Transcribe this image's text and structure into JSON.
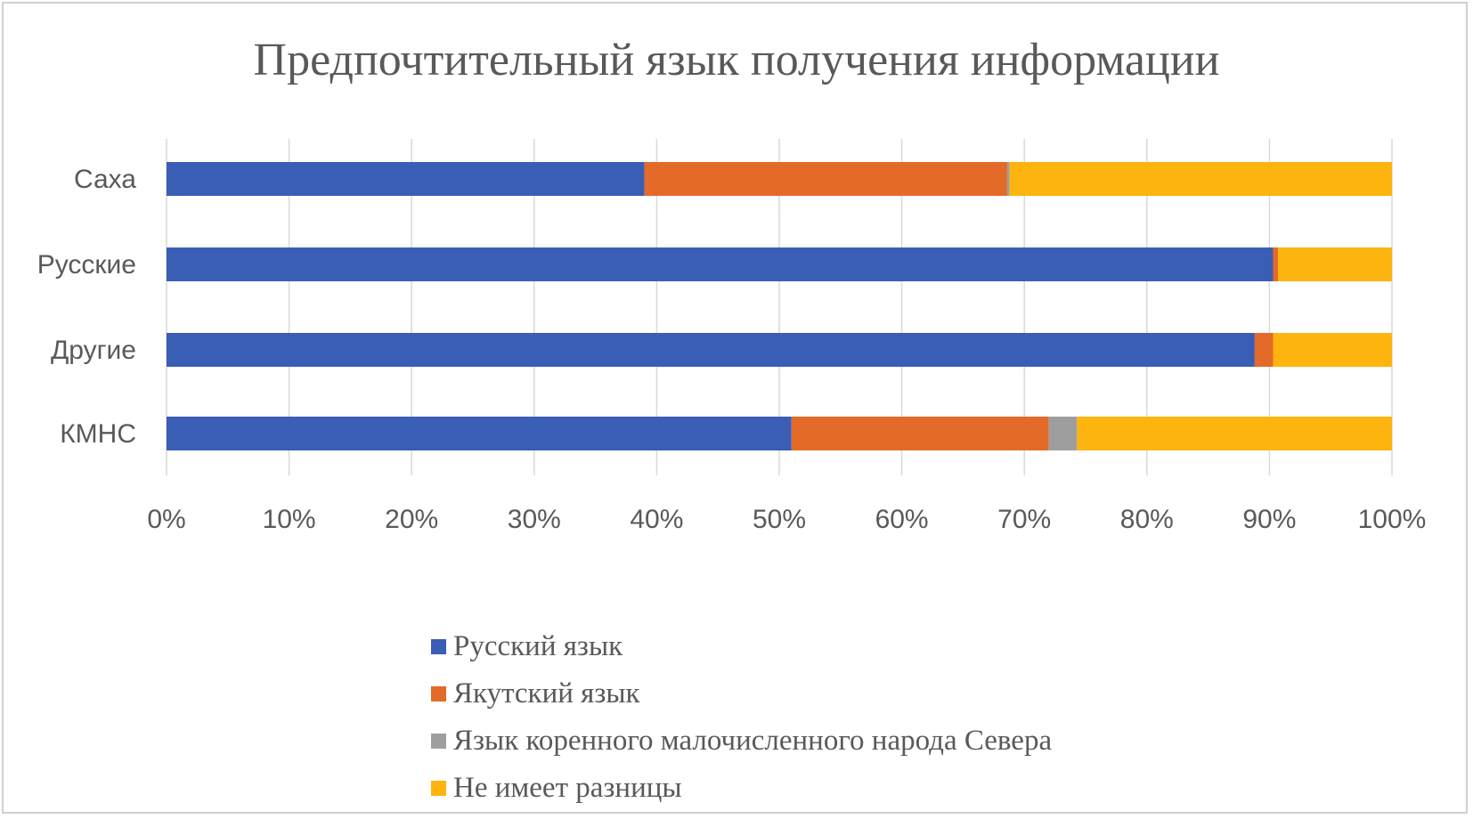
{
  "chart_data": {
    "type": "bar",
    "orientation": "horizontal",
    "stacked": "percent",
    "title": "Предпочтительный язык получения информации",
    "categories": [
      "Саха",
      "Русские",
      "Другие",
      "КМНС"
    ],
    "series": [
      {
        "name": "Русский язык",
        "color": "#3A5DB5",
        "values": [
          39.0,
          90.3,
          88.8,
          51.0
        ]
      },
      {
        "name": "Якутский язык",
        "color": "#E36A28",
        "values": [
          29.6,
          0.4,
          1.5,
          21.0
        ]
      },
      {
        "name": "Язык коренного малочисленного народа Севера",
        "color": "#9E9E9E",
        "values": [
          0.2,
          0.0,
          0.0,
          2.3
        ]
      },
      {
        "name": "Не имеет разницы",
        "color": "#FDB40F",
        "values": [
          31.2,
          9.3,
          9.7,
          25.7
        ]
      }
    ],
    "xlim": [
      0,
      100
    ],
    "xticks": [
      "0%",
      "10%",
      "20%",
      "30%",
      "40%",
      "50%",
      "60%",
      "70%",
      "80%",
      "90%",
      "100%"
    ],
    "grid": true,
    "legend": "bottom"
  }
}
